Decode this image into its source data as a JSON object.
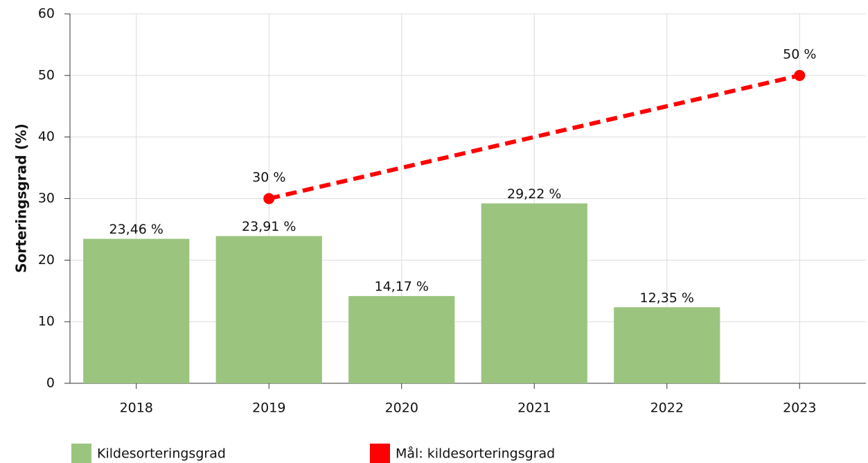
{
  "chart_data": {
    "type": "bar",
    "y_label": "Sorteringsgrad (%)",
    "categories": [
      "2018",
      "2019",
      "2020",
      "2021",
      "2022",
      "2023"
    ],
    "ylim": [
      0,
      60
    ],
    "yticks": [
      0,
      10,
      20,
      30,
      40,
      50,
      60
    ],
    "grid": true,
    "legend": "bottom",
    "series": [
      {
        "name": "Kildesorteringsgrad",
        "type": "bar",
        "color": "#9bc47f",
        "values": [
          23.46,
          23.91,
          14.17,
          29.22,
          12.35,
          null
        ],
        "value_labels": [
          "23,46 %",
          "23,91 %",
          "14,17 %",
          "29,22 %",
          "12,35 %",
          null
        ]
      },
      {
        "name": "Mål: kildesorteringsgrad",
        "type": "line",
        "color": "#ff0000",
        "dashed": true,
        "x": [
          "2019",
          "2023"
        ],
        "values": [
          30,
          50
        ],
        "value_labels": [
          "30 %",
          "50 %"
        ]
      }
    ]
  }
}
